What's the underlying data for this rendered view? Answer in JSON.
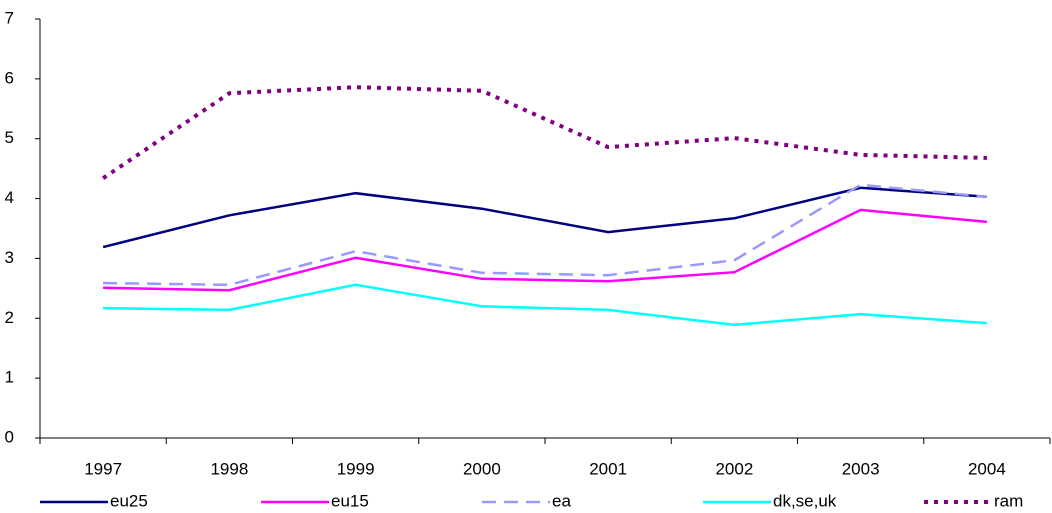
{
  "chart_data": {
    "type": "line",
    "categories": [
      "1997",
      "1998",
      "1999",
      "2000",
      "2001",
      "2002",
      "2003",
      "2004"
    ],
    "series": [
      {
        "name": "eu25",
        "color": "#000080",
        "style": "solid",
        "values": [
          3.19,
          3.72,
          4.09,
          3.83,
          3.44,
          3.67,
          4.18,
          4.03
        ]
      },
      {
        "name": "eu15",
        "color": "#ff00ff",
        "style": "solid",
        "values": [
          2.51,
          2.47,
          3.01,
          2.66,
          2.62,
          2.77,
          3.81,
          3.61
        ]
      },
      {
        "name": "ea",
        "color": "#9999ff",
        "style": "dashed",
        "values": [
          2.59,
          2.56,
          3.12,
          2.76,
          2.72,
          2.97,
          4.23,
          4.03
        ]
      },
      {
        "name": "dk,se,uk",
        "color": "#00ffff",
        "style": "solid",
        "values": [
          2.17,
          2.14,
          2.56,
          2.2,
          2.14,
          1.89,
          2.07,
          1.92
        ]
      },
      {
        "name": "ram",
        "color": "#800080",
        "style": "dotted",
        "values": [
          4.34,
          5.76,
          5.86,
          5.8,
          4.86,
          5.01,
          4.73,
          4.68
        ]
      }
    ],
    "ylim": [
      0,
      7
    ],
    "yticks": [
      0,
      1,
      2,
      3,
      4,
      5,
      6,
      7
    ],
    "grid": false,
    "legend": "bottom"
  }
}
